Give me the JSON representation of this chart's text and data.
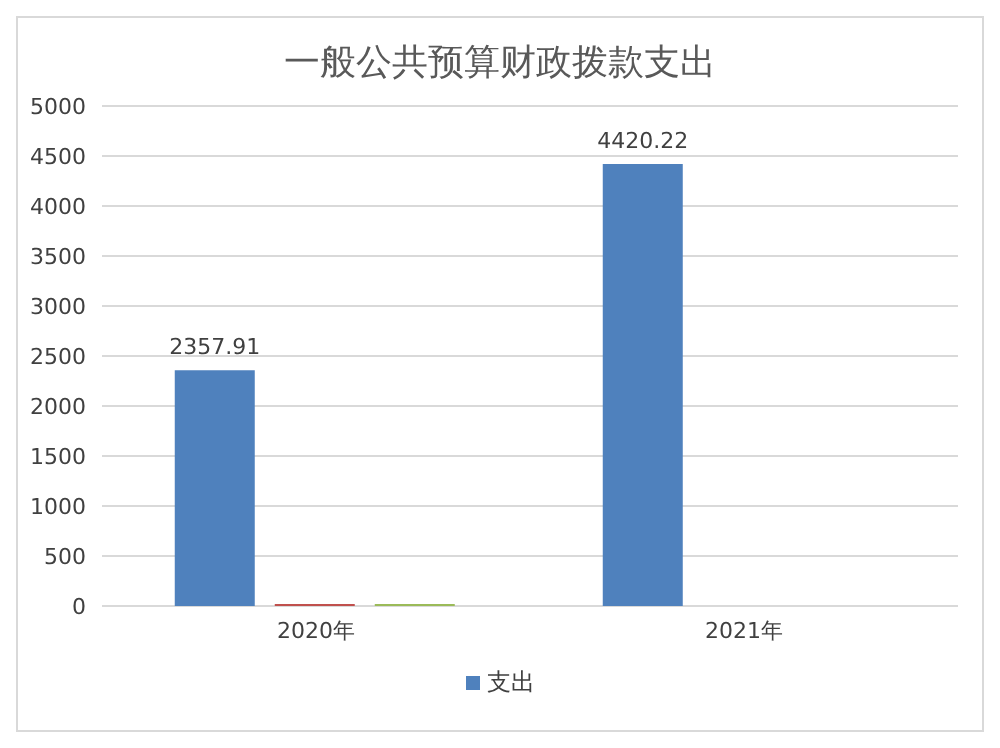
{
  "chart_data": {
    "type": "bar",
    "title": "一般公共预算财政拨款支出",
    "categories": [
      "2020年",
      "2021年"
    ],
    "series": [
      {
        "name": "支出",
        "color": "#4f81bd",
        "values": [
          2357.91,
          4420.22
        ]
      },
      {
        "color": "#c0504d",
        "values": [
          20,
          null
        ]
      },
      {
        "color": "#9bbb59",
        "values": [
          20,
          null
        ]
      }
    ],
    "value_labels": [
      [
        "2357.91",
        "4420.22"
      ],
      null,
      null
    ],
    "ylim": [
      0,
      5000
    ],
    "yticks": [
      0,
      500,
      1000,
      1500,
      2000,
      2500,
      3000,
      3500,
      4000,
      4500,
      5000
    ],
    "grid": "y",
    "legend": "bottom"
  }
}
